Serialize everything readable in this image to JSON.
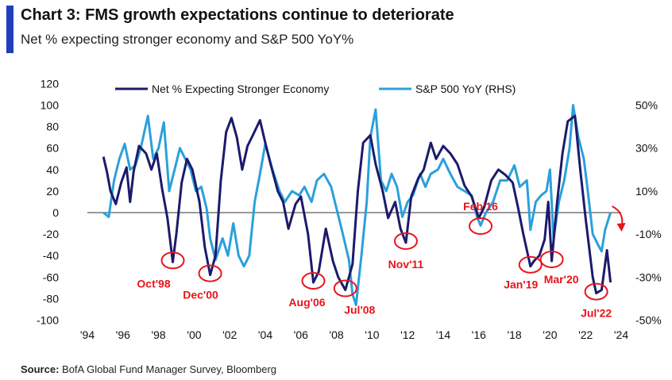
{
  "title": "Chart 3: FMS growth expectations continue to deteriorate",
  "subtitle": "Net % expecting stronger economy and S&P 500 YoY%",
  "source": {
    "label": "Source:",
    "text": " BofA Global Fund Manager Survey, Bloomberg"
  },
  "colors": {
    "accent": "#1f3fbf",
    "net": "#1c1a6b",
    "spx": "#2ba0db",
    "annotation": "#e8141a",
    "zero_line": "#777777"
  },
  "chart_data": {
    "type": "line",
    "legend_placement": "top",
    "grid": false,
    "x_range": [
      1994,
      2024
    ],
    "x_ticks": [
      "'94",
      "'96",
      "'98",
      "'00",
      "'02",
      "'04",
      "'06",
      "'08",
      "'10",
      "'12",
      "'14",
      "'16",
      "'18",
      "'20",
      "'22",
      "'24"
    ],
    "y_left": {
      "range": [
        -100,
        120
      ],
      "ticks": [
        "120",
        "100",
        "80",
        "60",
        "40",
        "20",
        "0",
        "-20",
        "-40",
        "-60",
        "-80",
        "-100"
      ]
    },
    "y_right": {
      "range": [
        -50,
        60
      ],
      "ticks": [
        "50%",
        "30%",
        "10%",
        "-10%",
        "-30%",
        "-50%"
      ]
    },
    "series": [
      {
        "name": "Net % Expecting Stronger Economy",
        "axis": "left",
        "points": [
          [
            1994.9,
            52
          ],
          [
            1995.1,
            38
          ],
          [
            1995.3,
            20
          ],
          [
            1995.6,
            8
          ],
          [
            1995.9,
            28
          ],
          [
            1996.2,
            42
          ],
          [
            1996.4,
            10
          ],
          [
            1996.6,
            38
          ],
          [
            1996.9,
            62
          ],
          [
            1997.3,
            55
          ],
          [
            1997.6,
            40
          ],
          [
            1997.9,
            55
          ],
          [
            1998.2,
            22
          ],
          [
            1998.5,
            -5
          ],
          [
            1998.8,
            -46
          ],
          [
            1999.0,
            -20
          ],
          [
            1999.3,
            28
          ],
          [
            1999.6,
            50
          ],
          [
            1999.9,
            40
          ],
          [
            2000.3,
            10
          ],
          [
            2000.6,
            -32
          ],
          [
            2000.9,
            -58
          ],
          [
            2001.2,
            -40
          ],
          [
            2001.5,
            30
          ],
          [
            2001.8,
            75
          ],
          [
            2002.1,
            88
          ],
          [
            2002.4,
            70
          ],
          [
            2002.7,
            40
          ],
          [
            2003.0,
            62
          ],
          [
            2003.3,
            72
          ],
          [
            2003.7,
            86
          ],
          [
            2004.0,
            65
          ],
          [
            2004.3,
            45
          ],
          [
            2004.7,
            20
          ],
          [
            2005.0,
            10
          ],
          [
            2005.3,
            -15
          ],
          [
            2005.7,
            8
          ],
          [
            2006.0,
            15
          ],
          [
            2006.4,
            -20
          ],
          [
            2006.7,
            -65
          ],
          [
            2007.0,
            -55
          ],
          [
            2007.4,
            -15
          ],
          [
            2007.8,
            -45
          ],
          [
            2008.1,
            -60
          ],
          [
            2008.5,
            -72
          ],
          [
            2008.9,
            -48
          ],
          [
            2009.2,
            20
          ],
          [
            2009.5,
            65
          ],
          [
            2009.9,
            72
          ],
          [
            2010.2,
            45
          ],
          [
            2010.6,
            20
          ],
          [
            2010.9,
            -5
          ],
          [
            2011.3,
            10
          ],
          [
            2011.6,
            -15
          ],
          [
            2011.9,
            -28
          ],
          [
            2012.2,
            15
          ],
          [
            2012.6,
            32
          ],
          [
            2012.9,
            40
          ],
          [
            2013.3,
            65
          ],
          [
            2013.6,
            50
          ],
          [
            2014.0,
            62
          ],
          [
            2014.4,
            55
          ],
          [
            2014.8,
            45
          ],
          [
            2015.2,
            25
          ],
          [
            2015.6,
            15
          ],
          [
            2016.0,
            -5
          ],
          [
            2016.3,
            5
          ],
          [
            2016.7,
            30
          ],
          [
            2017.1,
            40
          ],
          [
            2017.5,
            35
          ],
          [
            2017.9,
            28
          ],
          [
            2018.2,
            5
          ],
          [
            2018.5,
            -20
          ],
          [
            2018.9,
            -50
          ],
          [
            2019.1,
            -45
          ],
          [
            2019.4,
            -40
          ],
          [
            2019.7,
            -25
          ],
          [
            2019.9,
            10
          ],
          [
            2020.1,
            -45
          ],
          [
            2020.4,
            10
          ],
          [
            2020.7,
            55
          ],
          [
            2021.0,
            85
          ],
          [
            2021.4,
            90
          ],
          [
            2021.7,
            40
          ],
          [
            2022.0,
            -5
          ],
          [
            2022.4,
            -60
          ],
          [
            2022.6,
            -75
          ],
          [
            2022.9,
            -72
          ],
          [
            2023.2,
            -35
          ],
          [
            2023.4,
            -65
          ]
        ]
      },
      {
        "name": "S&P 500 YoY (RHS)",
        "axis": "right",
        "points": [
          [
            1994.9,
            0
          ],
          [
            1995.2,
            -2
          ],
          [
            1995.5,
            15
          ],
          [
            1995.8,
            25
          ],
          [
            1996.1,
            32
          ],
          [
            1996.4,
            20
          ],
          [
            1996.7,
            22
          ],
          [
            1997.0,
            30
          ],
          [
            1997.4,
            45
          ],
          [
            1997.7,
            25
          ],
          [
            1998.0,
            30
          ],
          [
            1998.3,
            42
          ],
          [
            1998.6,
            10
          ],
          [
            1998.9,
            20
          ],
          [
            1999.2,
            30
          ],
          [
            1999.5,
            25
          ],
          [
            1999.8,
            20
          ],
          [
            2000.1,
            10
          ],
          [
            2000.4,
            12
          ],
          [
            2000.7,
            2
          ],
          [
            2000.9,
            -12
          ],
          [
            2001.2,
            -22
          ],
          [
            2001.6,
            -12
          ],
          [
            2001.9,
            -20
          ],
          [
            2002.2,
            -5
          ],
          [
            2002.5,
            -20
          ],
          [
            2002.8,
            -25
          ],
          [
            2003.1,
            -20
          ],
          [
            2003.4,
            5
          ],
          [
            2003.7,
            18
          ],
          [
            2004.0,
            32
          ],
          [
            2004.4,
            20
          ],
          [
            2004.8,
            10
          ],
          [
            2005.1,
            5
          ],
          [
            2005.5,
            10
          ],
          [
            2005.9,
            8
          ],
          [
            2006.2,
            12
          ],
          [
            2006.6,
            5
          ],
          [
            2006.9,
            15
          ],
          [
            2007.3,
            18
          ],
          [
            2007.7,
            12
          ],
          [
            2008.0,
            2
          ],
          [
            2008.3,
            -8
          ],
          [
            2008.7,
            -22
          ],
          [
            2008.9,
            -38
          ],
          [
            2009.1,
            -43
          ],
          [
            2009.4,
            -20
          ],
          [
            2009.7,
            5
          ],
          [
            2009.9,
            35
          ],
          [
            2010.2,
            48
          ],
          [
            2010.5,
            15
          ],
          [
            2010.8,
            10
          ],
          [
            2011.1,
            18
          ],
          [
            2011.4,
            12
          ],
          [
            2011.7,
            -2
          ],
          [
            2012.0,
            5
          ],
          [
            2012.3,
            8
          ],
          [
            2012.7,
            18
          ],
          [
            2013.0,
            12
          ],
          [
            2013.3,
            18
          ],
          [
            2013.7,
            20
          ],
          [
            2014.0,
            25
          ],
          [
            2014.4,
            18
          ],
          [
            2014.8,
            12
          ],
          [
            2015.2,
            10
          ],
          [
            2015.6,
            8
          ],
          [
            2015.9,
            -2
          ],
          [
            2016.1,
            -6
          ],
          [
            2016.4,
            0
          ],
          [
            2016.8,
            5
          ],
          [
            2017.2,
            15
          ],
          [
            2017.6,
            15
          ],
          [
            2018.0,
            22
          ],
          [
            2018.3,
            12
          ],
          [
            2018.7,
            15
          ],
          [
            2018.9,
            -8
          ],
          [
            2019.2,
            5
          ],
          [
            2019.5,
            8
          ],
          [
            2019.8,
            10
          ],
          [
            2020.0,
            20
          ],
          [
            2020.2,
            -12
          ],
          [
            2020.5,
            5
          ],
          [
            2020.8,
            15
          ],
          [
            2021.1,
            30
          ],
          [
            2021.3,
            50
          ],
          [
            2021.6,
            35
          ],
          [
            2021.9,
            25
          ],
          [
            2022.1,
            12
          ],
          [
            2022.4,
            -10
          ],
          [
            2022.7,
            -15
          ],
          [
            2022.9,
            -18
          ],
          [
            2023.1,
            -8
          ],
          [
            2023.4,
            0
          ]
        ]
      }
    ],
    "annotations": [
      {
        "label": "Oct'98",
        "x": 1998.8,
        "y": -46
      },
      {
        "label": "Dec'00",
        "x": 2000.9,
        "y": -58
      },
      {
        "label": "Aug'06",
        "x": 2006.7,
        "y": -65
      },
      {
        "label": "Jul'08",
        "x": 2008.5,
        "y": -72
      },
      {
        "label": "Nov'11",
        "x": 2011.9,
        "y": -28
      },
      {
        "label": "Feb'16",
        "x": 2016.1,
        "y": -14
      },
      {
        "label": "Jan'19",
        "x": 2018.9,
        "y": -50
      },
      {
        "label": "Mar'20",
        "x": 2020.1,
        "y": -45
      },
      {
        "label": "Jul'22",
        "x": 2022.6,
        "y": -75
      }
    ]
  }
}
